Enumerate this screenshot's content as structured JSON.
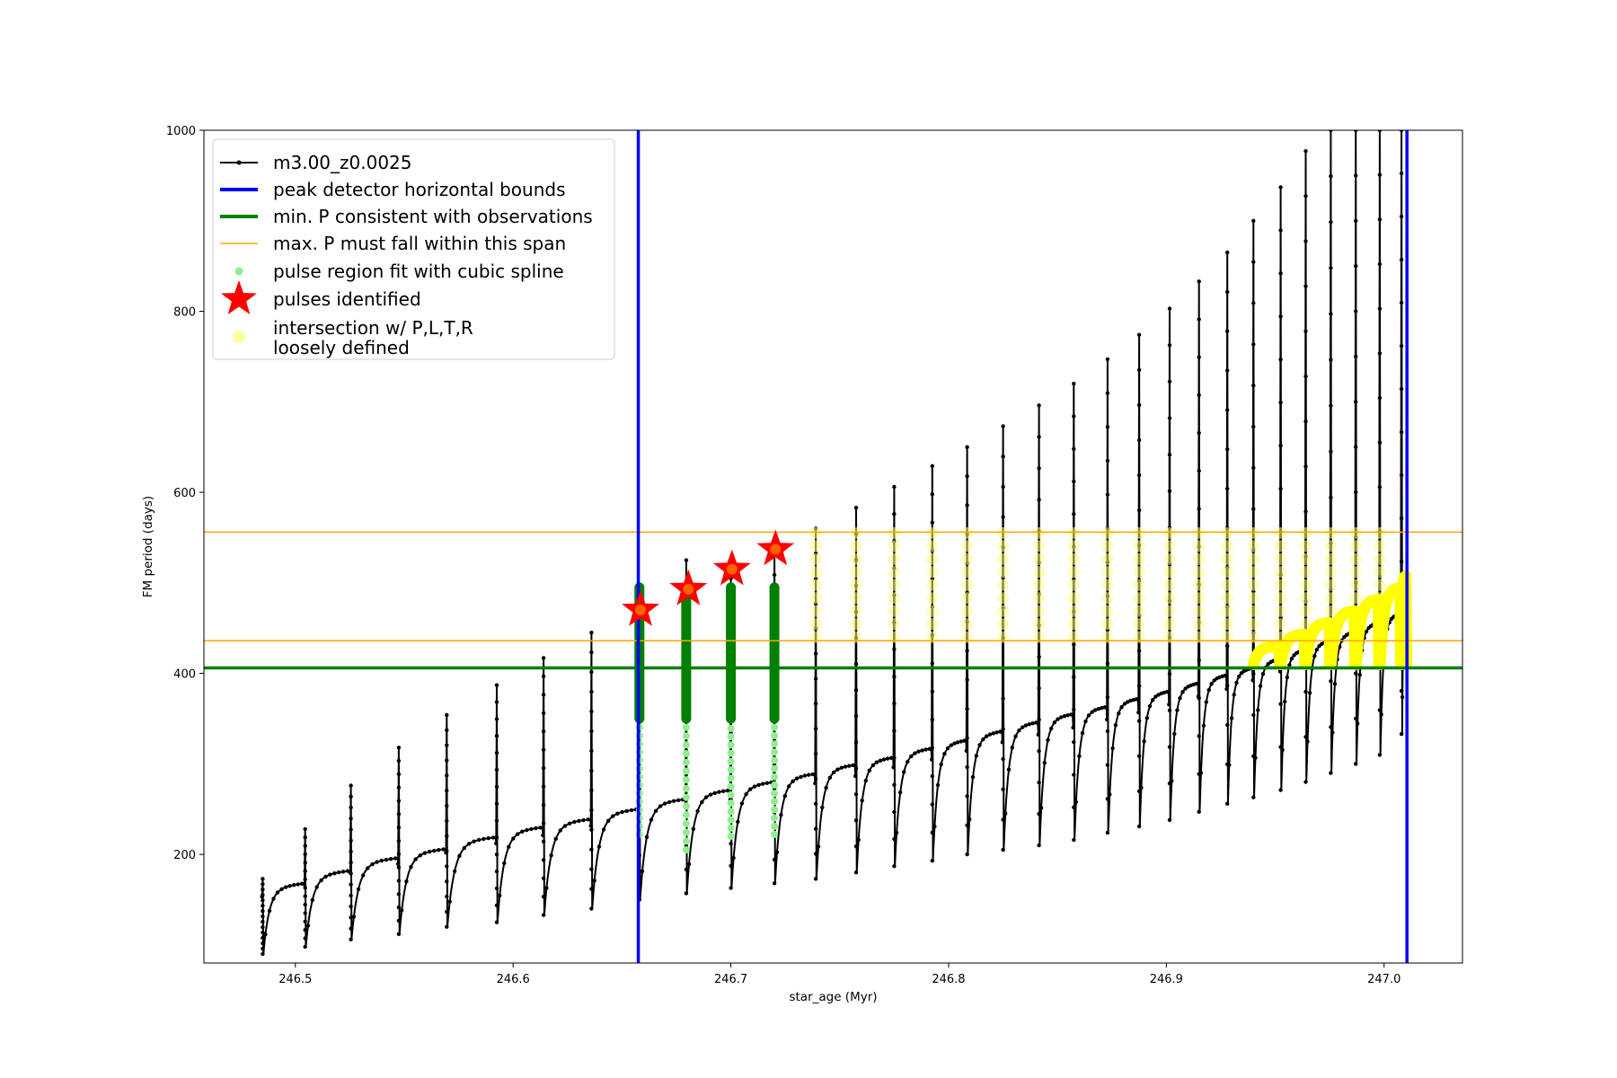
{
  "chart_data": {
    "type": "line",
    "xlabel": "star_age (Myr)",
    "ylabel": "FM period (days)",
    "xlim": [
      246.458,
      247.036
    ],
    "ylim": [
      80,
      1000
    ],
    "x_ticks": [
      246.5,
      246.6,
      246.7,
      246.8,
      246.9,
      247.0
    ],
    "x_tick_labels": [
      "246.5",
      "246.6",
      "246.7",
      "246.8",
      "246.9",
      "247.0"
    ],
    "y_ticks": [
      200,
      400,
      600,
      800,
      1000
    ],
    "y_tick_labels": [
      "200",
      "400",
      "600",
      "800",
      "1000"
    ],
    "grid": false,
    "legend_position": "upper-left",
    "legend": [
      {
        "label": "m3.00_z0.0025",
        "marker": "line-dot",
        "color": "#000000"
      },
      {
        "label": "peak detector horizontal bounds",
        "marker": "line",
        "color": "#0000ff"
      },
      {
        "label": "min. P consistent with observations",
        "marker": "line",
        "color": "#008000"
      },
      {
        "label": "max. P must fall within this span",
        "marker": "thin-line",
        "color": "#ffa500"
      },
      {
        "label": "pulse region fit with cubic spline",
        "marker": "dot",
        "color": "#90ee90"
      },
      {
        "label": "pulses identified",
        "marker": "star",
        "color": "#ff0000"
      },
      {
        "label": "intersection w/ P,L,T,R",
        "label_line2": "loosely defined",
        "marker": "circle",
        "color": "#ffffa0"
      }
    ],
    "vertical_lines": [
      {
        "x": 246.6575,
        "color": "#0000ff"
      },
      {
        "x": 247.0105,
        "color": "#0000ff"
      }
    ],
    "horizontal_lines": [
      {
        "y": 406,
        "color": "#008000",
        "role": "min"
      },
      {
        "y": 436,
        "color": "#ffa500",
        "role": "span-low"
      },
      {
        "y": 556,
        "color": "#ffa500",
        "role": "span-high"
      }
    ],
    "series": [
      {
        "name": "m3.00_z0.0025",
        "color": "#000000",
        "pulses": [
          {
            "x": 246.485,
            "peak": 173,
            "min": 90,
            "base": 162
          },
          {
            "x": 246.5045,
            "peak": 228,
            "min": 98,
            "base": 176
          },
          {
            "x": 246.5255,
            "peak": 276,
            "min": 106,
            "base": 190
          },
          {
            "x": 246.5475,
            "peak": 318,
            "min": 112,
            "base": 200
          },
          {
            "x": 246.5695,
            "peak": 354,
            "min": 120,
            "base": 213
          },
          {
            "x": 246.5925,
            "peak": 387,
            "min": 125,
            "base": 224
          },
          {
            "x": 246.614,
            "peak": 417,
            "min": 133,
            "base": 233
          },
          {
            "x": 246.636,
            "peak": 445,
            "min": 140,
            "base": 244
          },
          {
            "x": 246.658,
            "peak": 493,
            "min": 150,
            "base": 255
          },
          {
            "x": 246.6795,
            "peak": 525,
            "min": 157,
            "base": 265
          },
          {
            "x": 246.7,
            "peak": 505,
            "min": 163,
            "base": 274
          },
          {
            "x": 246.72,
            "peak": 535,
            "min": 168,
            "base": 283
          },
          {
            "x": 246.739,
            "peak": 560,
            "min": 173,
            "base": 293
          },
          {
            "x": 246.7575,
            "peak": 583,
            "min": 180,
            "base": 301
          },
          {
            "x": 246.775,
            "peak": 606,
            "min": 187,
            "base": 311
          },
          {
            "x": 246.7925,
            "peak": 629,
            "min": 193,
            "base": 320
          },
          {
            "x": 246.8085,
            "peak": 650,
            "min": 200,
            "base": 330
          },
          {
            "x": 246.825,
            "peak": 673,
            "min": 205,
            "base": 340
          },
          {
            "x": 246.8415,
            "peak": 696,
            "min": 210,
            "base": 349
          },
          {
            "x": 246.8575,
            "peak": 720,
            "min": 216,
            "base": 357
          },
          {
            "x": 246.873,
            "peak": 747,
            "min": 224,
            "base": 366
          },
          {
            "x": 246.8875,
            "peak": 774,
            "min": 231,
            "base": 374
          },
          {
            "x": 246.9015,
            "peak": 803,
            "min": 238,
            "base": 383
          },
          {
            "x": 246.915,
            "peak": 833,
            "min": 247,
            "base": 392
          },
          {
            "x": 246.928,
            "peak": 865,
            "min": 256,
            "base": 400
          },
          {
            "x": 246.94,
            "peak": 900,
            "min": 263,
            "base": 410
          },
          {
            "x": 246.9525,
            "peak": 937,
            "min": 271,
            "base": 420
          },
          {
            "x": 246.964,
            "peak": 977,
            "min": 280,
            "base": 430
          },
          {
            "x": 246.9755,
            "peak": 1000,
            "min": 290,
            "base": 440
          },
          {
            "x": 246.987,
            "peak": 1000,
            "min": 300,
            "base": 450
          },
          {
            "x": 246.998,
            "peak": 1000,
            "min": 310,
            "base": 460
          },
          {
            "x": 247.008,
            "peak": 1000,
            "min": 333,
            "base": 470
          }
        ]
      },
      {
        "name": "pulse region fit with cubic spline",
        "color": "#90ee90",
        "pulses": [
          {
            "x": 246.658,
            "from": 222,
            "to": 495
          },
          {
            "x": 246.6795,
            "from": 205,
            "to": 495
          },
          {
            "x": 246.7,
            "from": 220,
            "to": 495
          },
          {
            "x": 246.72,
            "from": 222,
            "to": 495
          }
        ]
      },
      {
        "name": "pulses identified",
        "color": "#ff0000",
        "x": [
          246.6585,
          246.6805,
          246.7005,
          246.7205
        ],
        "y": [
          470,
          493,
          515,
          537
        ]
      },
      {
        "name": "intersection w/ P,L,T,R",
        "color": "#ffff80",
        "x_pulses": [
          246.739,
          246.7575,
          246.775,
          246.7925,
          246.8085,
          246.825,
          246.8415,
          246.8575,
          246.873,
          246.8875,
          246.9015,
          246.915,
          246.928,
          246.94,
          246.9525,
          246.964,
          246.9755,
          246.987,
          246.998
        ],
        "y_range": [
          440,
          555
        ]
      }
    ]
  }
}
